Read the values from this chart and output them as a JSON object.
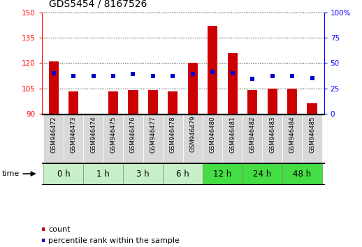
{
  "title": "GDS5454 / 8167526",
  "samples": [
    "GSM946472",
    "GSM946473",
    "GSM946474",
    "GSM946475",
    "GSM946476",
    "GSM946477",
    "GSM946478",
    "GSM946479",
    "GSM946480",
    "GSM946481",
    "GSM946482",
    "GSM946483",
    "GSM946484",
    "GSM946485"
  ],
  "count_values": [
    121,
    103,
    90,
    103,
    104,
    104,
    103,
    120,
    142,
    126,
    104,
    105,
    105,
    96
  ],
  "percentile_values": [
    40,
    37,
    37,
    37,
    39,
    37,
    37,
    39,
    41,
    40,
    34,
    37,
    37,
    35
  ],
  "time_groups": [
    {
      "label": "0 h",
      "indices": [
        0,
        1
      ],
      "color": "#c8f0c8"
    },
    {
      "label": "1 h",
      "indices": [
        2,
        3
      ],
      "color": "#c8f0c8"
    },
    {
      "label": "3 h",
      "indices": [
        4,
        5
      ],
      "color": "#c8f0c8"
    },
    {
      "label": "6 h",
      "indices": [
        6,
        7
      ],
      "color": "#c8f0c8"
    },
    {
      "label": "12 h",
      "indices": [
        8,
        9
      ],
      "color": "#44dd44"
    },
    {
      "label": "24 h",
      "indices": [
        10,
        11
      ],
      "color": "#44dd44"
    },
    {
      "label": "48 h",
      "indices": [
        12,
        13
      ],
      "color": "#44dd44"
    }
  ],
  "ylim_left": [
    90,
    150
  ],
  "yticks_left": [
    90,
    105,
    120,
    135,
    150
  ],
  "ylim_right": [
    0,
    100
  ],
  "yticks_right": [
    0,
    25,
    50,
    75,
    100
  ],
  "bar_color": "#cc0000",
  "dot_color": "#0000cc",
  "bar_width": 0.5,
  "background_color": "#ffffff",
  "time_label": "time",
  "legend_count": "count",
  "legend_percentile": "percentile rank within the sample",
  "title_fontsize": 10,
  "tick_fontsize": 7.5,
  "sample_fontsize": 6.2,
  "time_fontsize": 8.5
}
